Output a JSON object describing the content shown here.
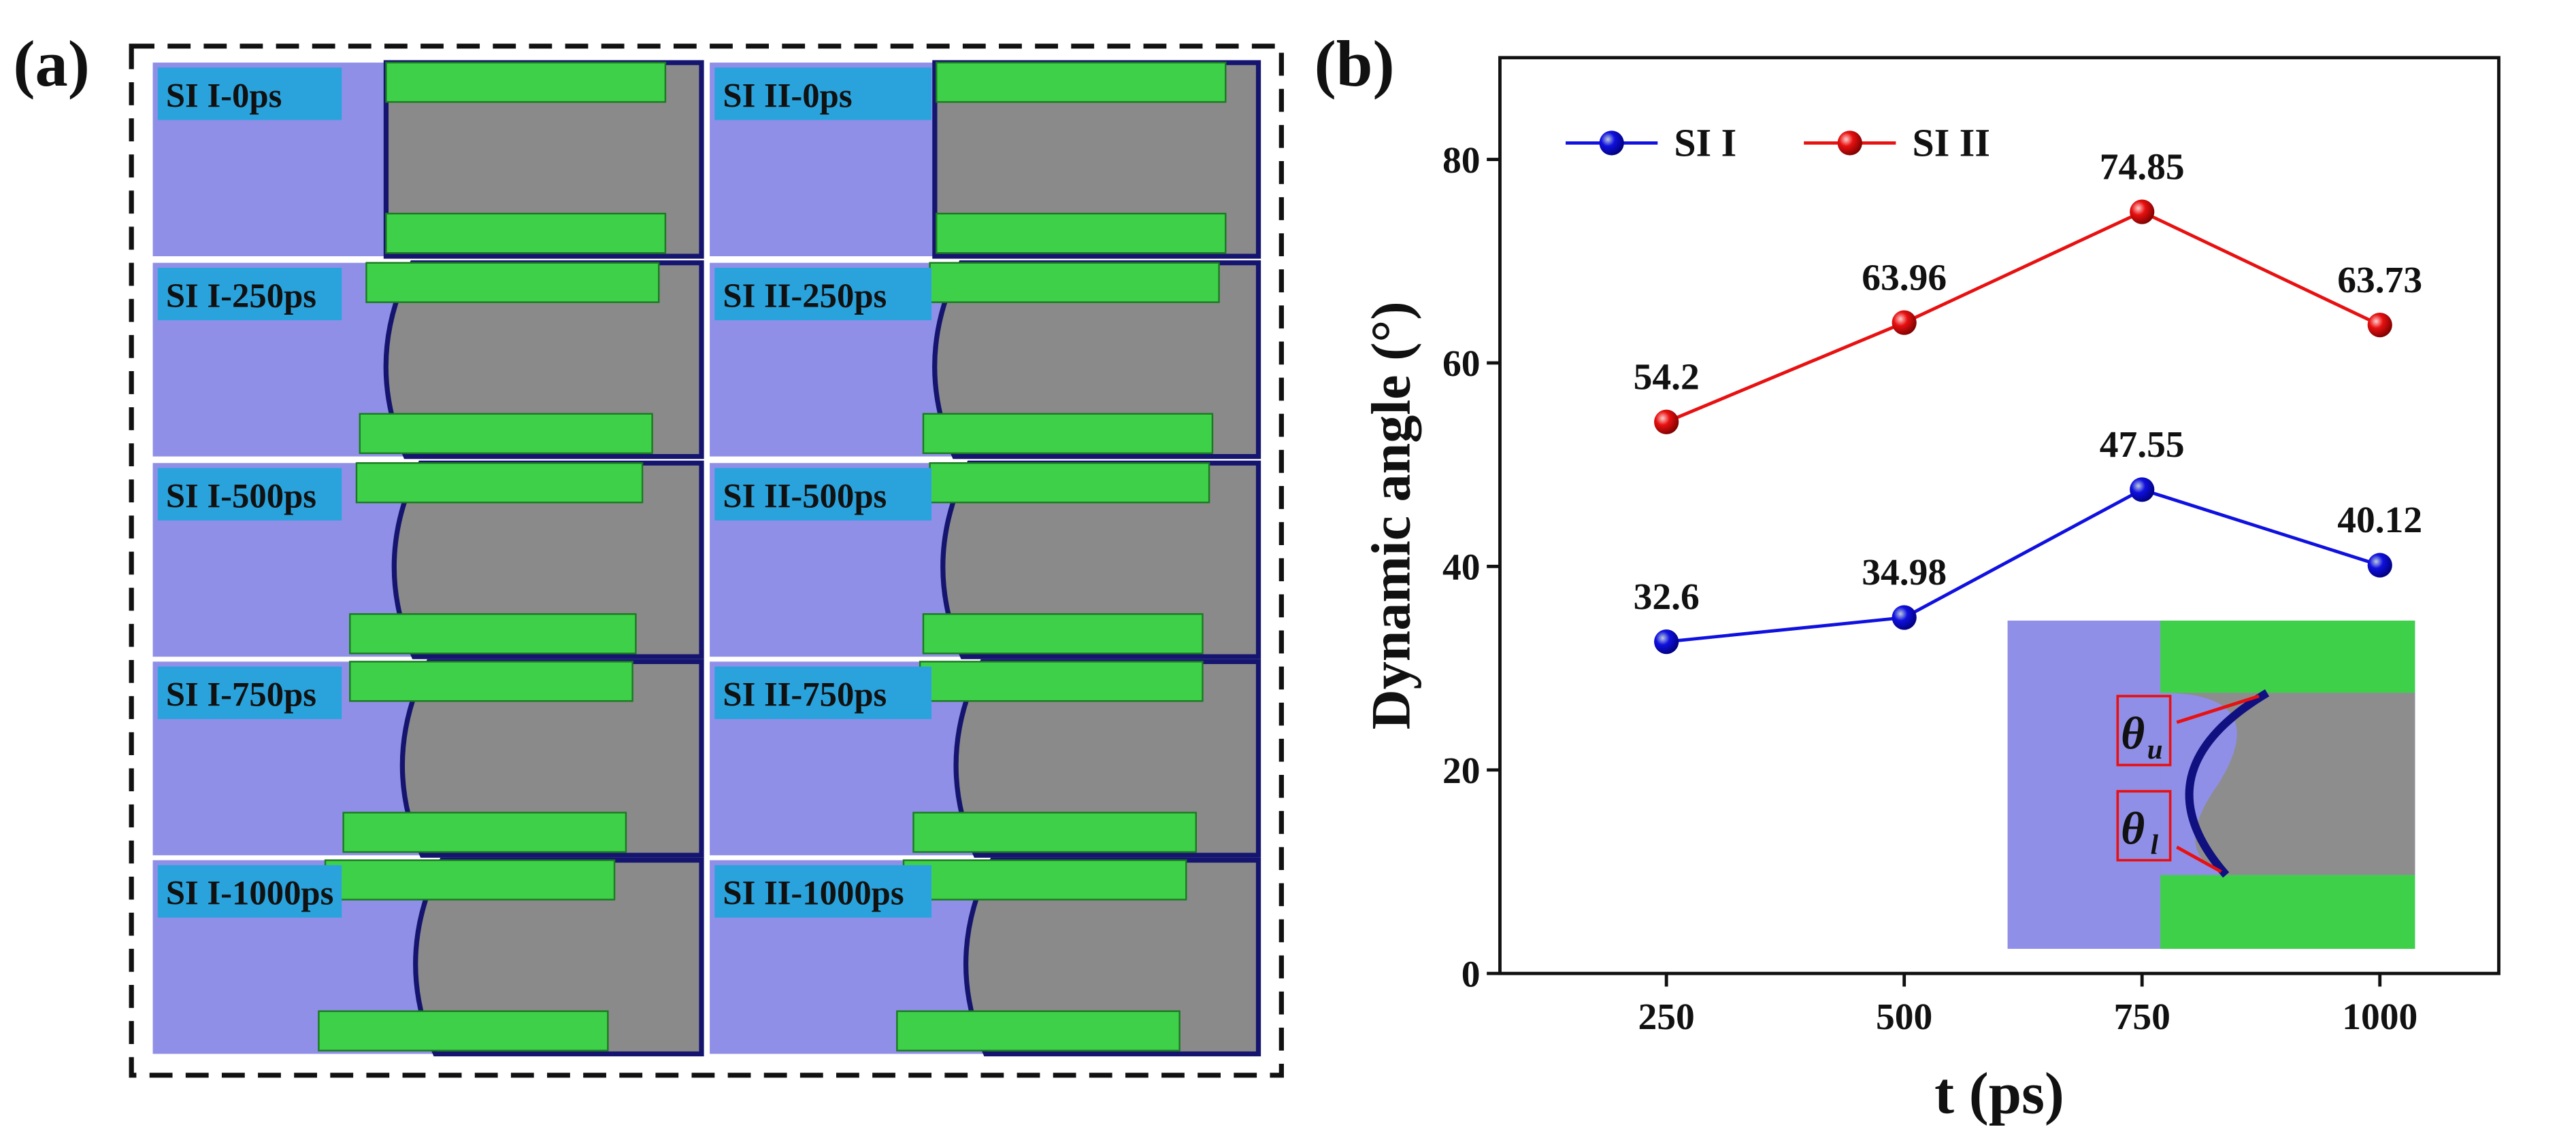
{
  "panels": [
    "(a)",
    "(b)"
  ],
  "snapshots": [
    "SI I-0ps",
    "SI II-0ps",
    "SI I-250ps",
    "SI II-250ps",
    "SI I-500ps",
    "SI II-500ps",
    "SI I-750ps",
    "SI II-750ps",
    "SI I-1000ps",
    "SI II-1000ps"
  ],
  "inset_labels": [
    {
      "symbol": "θ",
      "subscript": "u"
    },
    {
      "symbol": "θ",
      "subscript": "l"
    }
  ],
  "chart_data": {
    "type": "line",
    "x_label": "t (ps)",
    "y_label": "Dynamic angle (°)",
    "x": [
      250,
      500,
      750,
      1000
    ],
    "series": [
      {
        "name": "SI I",
        "color": "#1010e0",
        "values": [
          32.6,
          34.98,
          47.55,
          40.12
        ]
      },
      {
        "name": "SI II",
        "color": "#e81010",
        "values": [
          54.2,
          63.96,
          74.85,
          63.73
        ]
      }
    ],
    "xlim": [
      75,
      1125
    ],
    "xticks": [
      250,
      500,
      750,
      1000
    ],
    "ylim": [
      0,
      90
    ],
    "yticks": [
      0,
      20,
      40,
      60,
      80
    ],
    "legend": "upper left"
  }
}
